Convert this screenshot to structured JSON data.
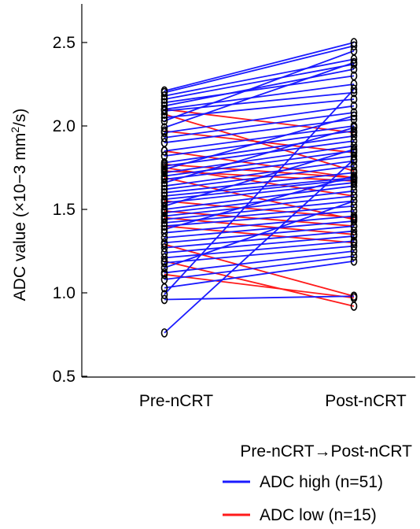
{
  "chart_data": {
    "type": "line",
    "ylabel": "ADC value (×10−3 mm2/s)",
    "categories": [
      "Pre-nCRT",
      "Post-nCRT"
    ],
    "yticks": [
      "0.5",
      "1.0",
      "1.5",
      "2.0",
      "2.5"
    ],
    "ylim": [
      0.5,
      2.7
    ],
    "legend": {
      "title": "Pre-nCRT→Post-nCRT",
      "position": "bottom-right",
      "items": [
        {
          "label": "ADC high (n=51)",
          "color": "#1a1aff"
        },
        {
          "label": "ADC low (n=15)",
          "color": "#ff1a1a"
        }
      ]
    },
    "series": [
      {
        "name": "ADC high (n=51)",
        "color": "#1a1aff",
        "pairs": [
          [
            2.21,
            2.5
          ],
          [
            2.2,
            2.48
          ],
          [
            2.18,
            2.4
          ],
          [
            2.16,
            2.37
          ],
          [
            2.14,
            2.3
          ],
          [
            2.12,
            2.34
          ],
          [
            2.1,
            2.25
          ],
          [
            2.09,
            2.2
          ],
          [
            2.05,
            2.16
          ],
          [
            1.99,
            2.38
          ],
          [
            1.96,
            2.12
          ],
          [
            1.93,
            2.08
          ],
          [
            1.9,
            2.04
          ],
          [
            1.85,
            2.0
          ],
          [
            1.82,
            1.97
          ],
          [
            1.78,
            1.94
          ],
          [
            1.76,
            1.91
          ],
          [
            1.74,
            2.06
          ],
          [
            1.72,
            1.88
          ],
          [
            1.7,
            1.85
          ],
          [
            1.68,
            1.82
          ],
          [
            1.66,
            1.99
          ],
          [
            1.64,
            1.79
          ],
          [
            1.62,
            1.76
          ],
          [
            1.6,
            1.72
          ],
          [
            1.58,
            1.69
          ],
          [
            1.56,
            1.68
          ],
          [
            1.54,
            1.66
          ],
          [
            1.52,
            1.86
          ],
          [
            1.5,
            1.64
          ],
          [
            1.48,
            1.61
          ],
          [
            1.46,
            1.58
          ],
          [
            1.44,
            1.55
          ],
          [
            1.42,
            1.52
          ],
          [
            1.4,
            1.49
          ],
          [
            1.38,
            1.7
          ],
          [
            1.36,
            1.46
          ],
          [
            1.33,
            1.43
          ],
          [
            1.3,
            1.4
          ],
          [
            1.27,
            1.37
          ],
          [
            1.24,
            1.34
          ],
          [
            1.21,
            1.31
          ],
          [
            1.18,
            1.28
          ],
          [
            1.15,
            1.55
          ],
          [
            1.12,
            1.25
          ],
          [
            1.08,
            1.22
          ],
          [
            1.03,
            1.19
          ],
          [
            0.99,
            2.22
          ],
          [
            0.96,
            0.98
          ],
          [
            0.76,
            1.8
          ],
          [
            2.03,
            2.45
          ]
        ]
      },
      {
        "name": "ADC low (n=15)",
        "color": "#ff1a1a",
        "pairs": [
          [
            2.1,
            1.96
          ],
          [
            2.07,
            1.73
          ],
          [
            1.97,
            1.84
          ],
          [
            1.85,
            1.69
          ],
          [
            1.77,
            1.69
          ],
          [
            1.75,
            1.58
          ],
          [
            1.73,
            1.67
          ],
          [
            1.69,
            1.44
          ],
          [
            1.55,
            1.45
          ],
          [
            1.49,
            1.4
          ],
          [
            1.45,
            1.35
          ],
          [
            1.4,
            1.3
          ],
          [
            1.29,
            0.98
          ],
          [
            1.19,
            0.92
          ],
          [
            1.11,
            0.97
          ]
        ]
      }
    ]
  }
}
